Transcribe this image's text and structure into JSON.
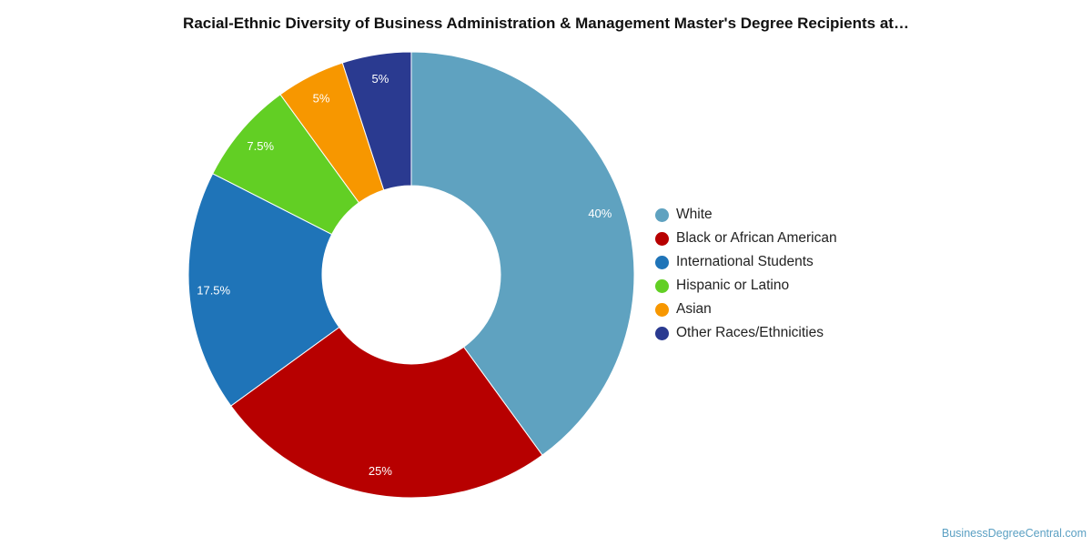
{
  "chart_data": {
    "type": "pie",
    "title": "Racial-Ethnic Diversity of Business Administration & Management Master's Degree Recipients at…",
    "donut": true,
    "categories": [
      "White",
      "Black or African American",
      "International Students",
      "Hispanic or Latino",
      "Asian",
      "Other Races/Ethnicities"
    ],
    "values": [
      40,
      25,
      17.5,
      7.5,
      5,
      5
    ],
    "labels": [
      "40%",
      "25%",
      "17.5%",
      "7.5%",
      "5%",
      "5%"
    ],
    "colors": [
      "#5fa2c0",
      "#b70000",
      "#1f74b8",
      "#62cf24",
      "#f79700",
      "#2a3a90"
    ],
    "legend_position": "right"
  },
  "watermark": "BusinessDegreeCentral.com"
}
